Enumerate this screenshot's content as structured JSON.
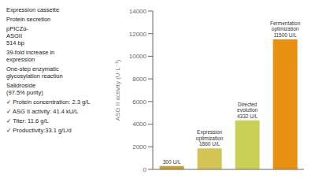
{
  "chart_data": {
    "type": "bar",
    "categories": [
      null,
      null,
      null,
      null
    ],
    "values": [
      300,
      1860,
      4332,
      11500
    ],
    "value_labels": [
      "300 U/L",
      "Expression\noptimization\n1860 U/L",
      "Directed\nevolution\n4332 U/L",
      "Fermentation\noptimization\n11500 U/L"
    ],
    "data_labels": true,
    "colors": [
      "#c8a030",
      "#d4c455",
      "#c8d055",
      "#e89010"
    ],
    "ylabel": "ASG II activity (U·L⁻¹)",
    "ylim": [
      0,
      14000
    ],
    "yticks": [
      0,
      2000,
      4000,
      6000,
      8000,
      10000,
      12000,
      14000
    ],
    "tick_labels": "y",
    "grid": false,
    "annotations": [
      "Expression cassette",
      "Protein secretion",
      "pPICZα-\nASGII\n514 bp",
      "39-fold increase in\nexpression",
      "One-step enzymatic\nglycosylation reaction",
      "Salidroside\n(97.5% purity)",
      "✓ Protein concentration: 2.3 g/L",
      "✓ ASG II activity: 41.4 kU/L",
      "✓ Titer: 11.6 g/L",
      "✓ Productivity:33.1 g/L/d"
    ]
  }
}
